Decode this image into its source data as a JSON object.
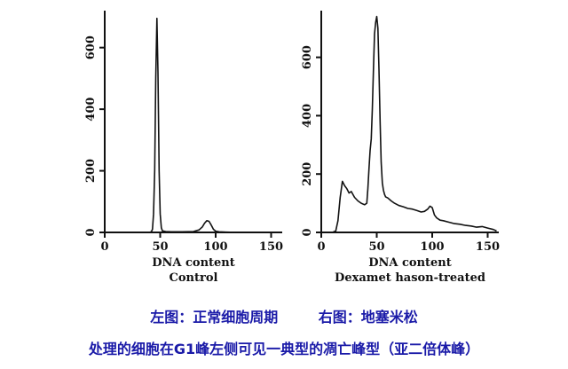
{
  "chart_data": [
    {
      "type": "line",
      "title": "",
      "xlabel": "DNA content",
      "subtitle": "Control",
      "ylabel": "",
      "xlim": [
        0,
        160
      ],
      "ylim": [
        0,
        720
      ],
      "xticks": [
        0,
        50,
        100,
        150
      ],
      "yticks": [
        0,
        200,
        400,
        600
      ],
      "grid": false,
      "series": [
        {
          "x": [
            40,
            42,
            43,
            44,
            45,
            46,
            47,
            48,
            49,
            50,
            51,
            52,
            55,
            60,
            70,
            80,
            85,
            88,
            90,
            92,
            94,
            96,
            98,
            100,
            103,
            110,
            120,
            140,
            160
          ],
          "y": [
            0,
            2,
            10,
            60,
            200,
            500,
            695,
            520,
            200,
            60,
            15,
            5,
            3,
            2,
            2,
            3,
            8,
            18,
            30,
            38,
            36,
            24,
            10,
            4,
            2,
            1,
            0,
            0,
            0
          ]
        }
      ]
    },
    {
      "type": "line",
      "title": "",
      "xlabel": "DNA content",
      "subtitle": "Dexamet hason-treated",
      "ylabel": "",
      "xlim": [
        0,
        160
      ],
      "ylim": [
        0,
        760
      ],
      "xticks": [
        0,
        50,
        100,
        150
      ],
      "yticks": [
        0,
        200,
        400,
        600
      ],
      "grid": false,
      "series": [
        {
          "x": [
            10,
            13,
            15,
            17,
            19,
            21,
            23,
            25,
            27,
            30,
            33,
            36,
            39,
            41,
            42,
            43,
            44,
            45,
            46,
            47,
            48,
            49,
            50,
            51,
            52,
            53,
            54,
            55,
            56,
            57,
            58,
            60,
            63,
            66,
            70,
            74,
            78,
            82,
            86,
            90,
            93,
            96,
            98,
            100,
            102,
            104,
            107,
            110,
            115,
            120,
            125,
            130,
            135,
            140,
            145,
            150,
            155,
            158
          ],
          "y": [
            0,
            5,
            40,
            120,
            175,
            160,
            150,
            135,
            140,
            120,
            108,
            100,
            95,
            100,
            150,
            220,
            280,
            320,
            420,
            560,
            680,
            720,
            740,
            700,
            560,
            380,
            240,
            170,
            145,
            130,
            122,
            118,
            108,
            100,
            92,
            88,
            82,
            80,
            75,
            70,
            72,
            80,
            90,
            85,
            60,
            50,
            42,
            40,
            35,
            30,
            28,
            24,
            22,
            18,
            20,
            15,
            10,
            5
          ]
        }
      ]
    }
  ],
  "captions": {
    "left_label": "左图：正常细胞周期",
    "right_label": "右图：地塞米松",
    "line2": "处理的细胞在G1峰左侧可见一典型的凋亡峰型（亚二倍体峰）"
  },
  "colors": {
    "line": "#111111",
    "caption": "#1a1aa8"
  }
}
